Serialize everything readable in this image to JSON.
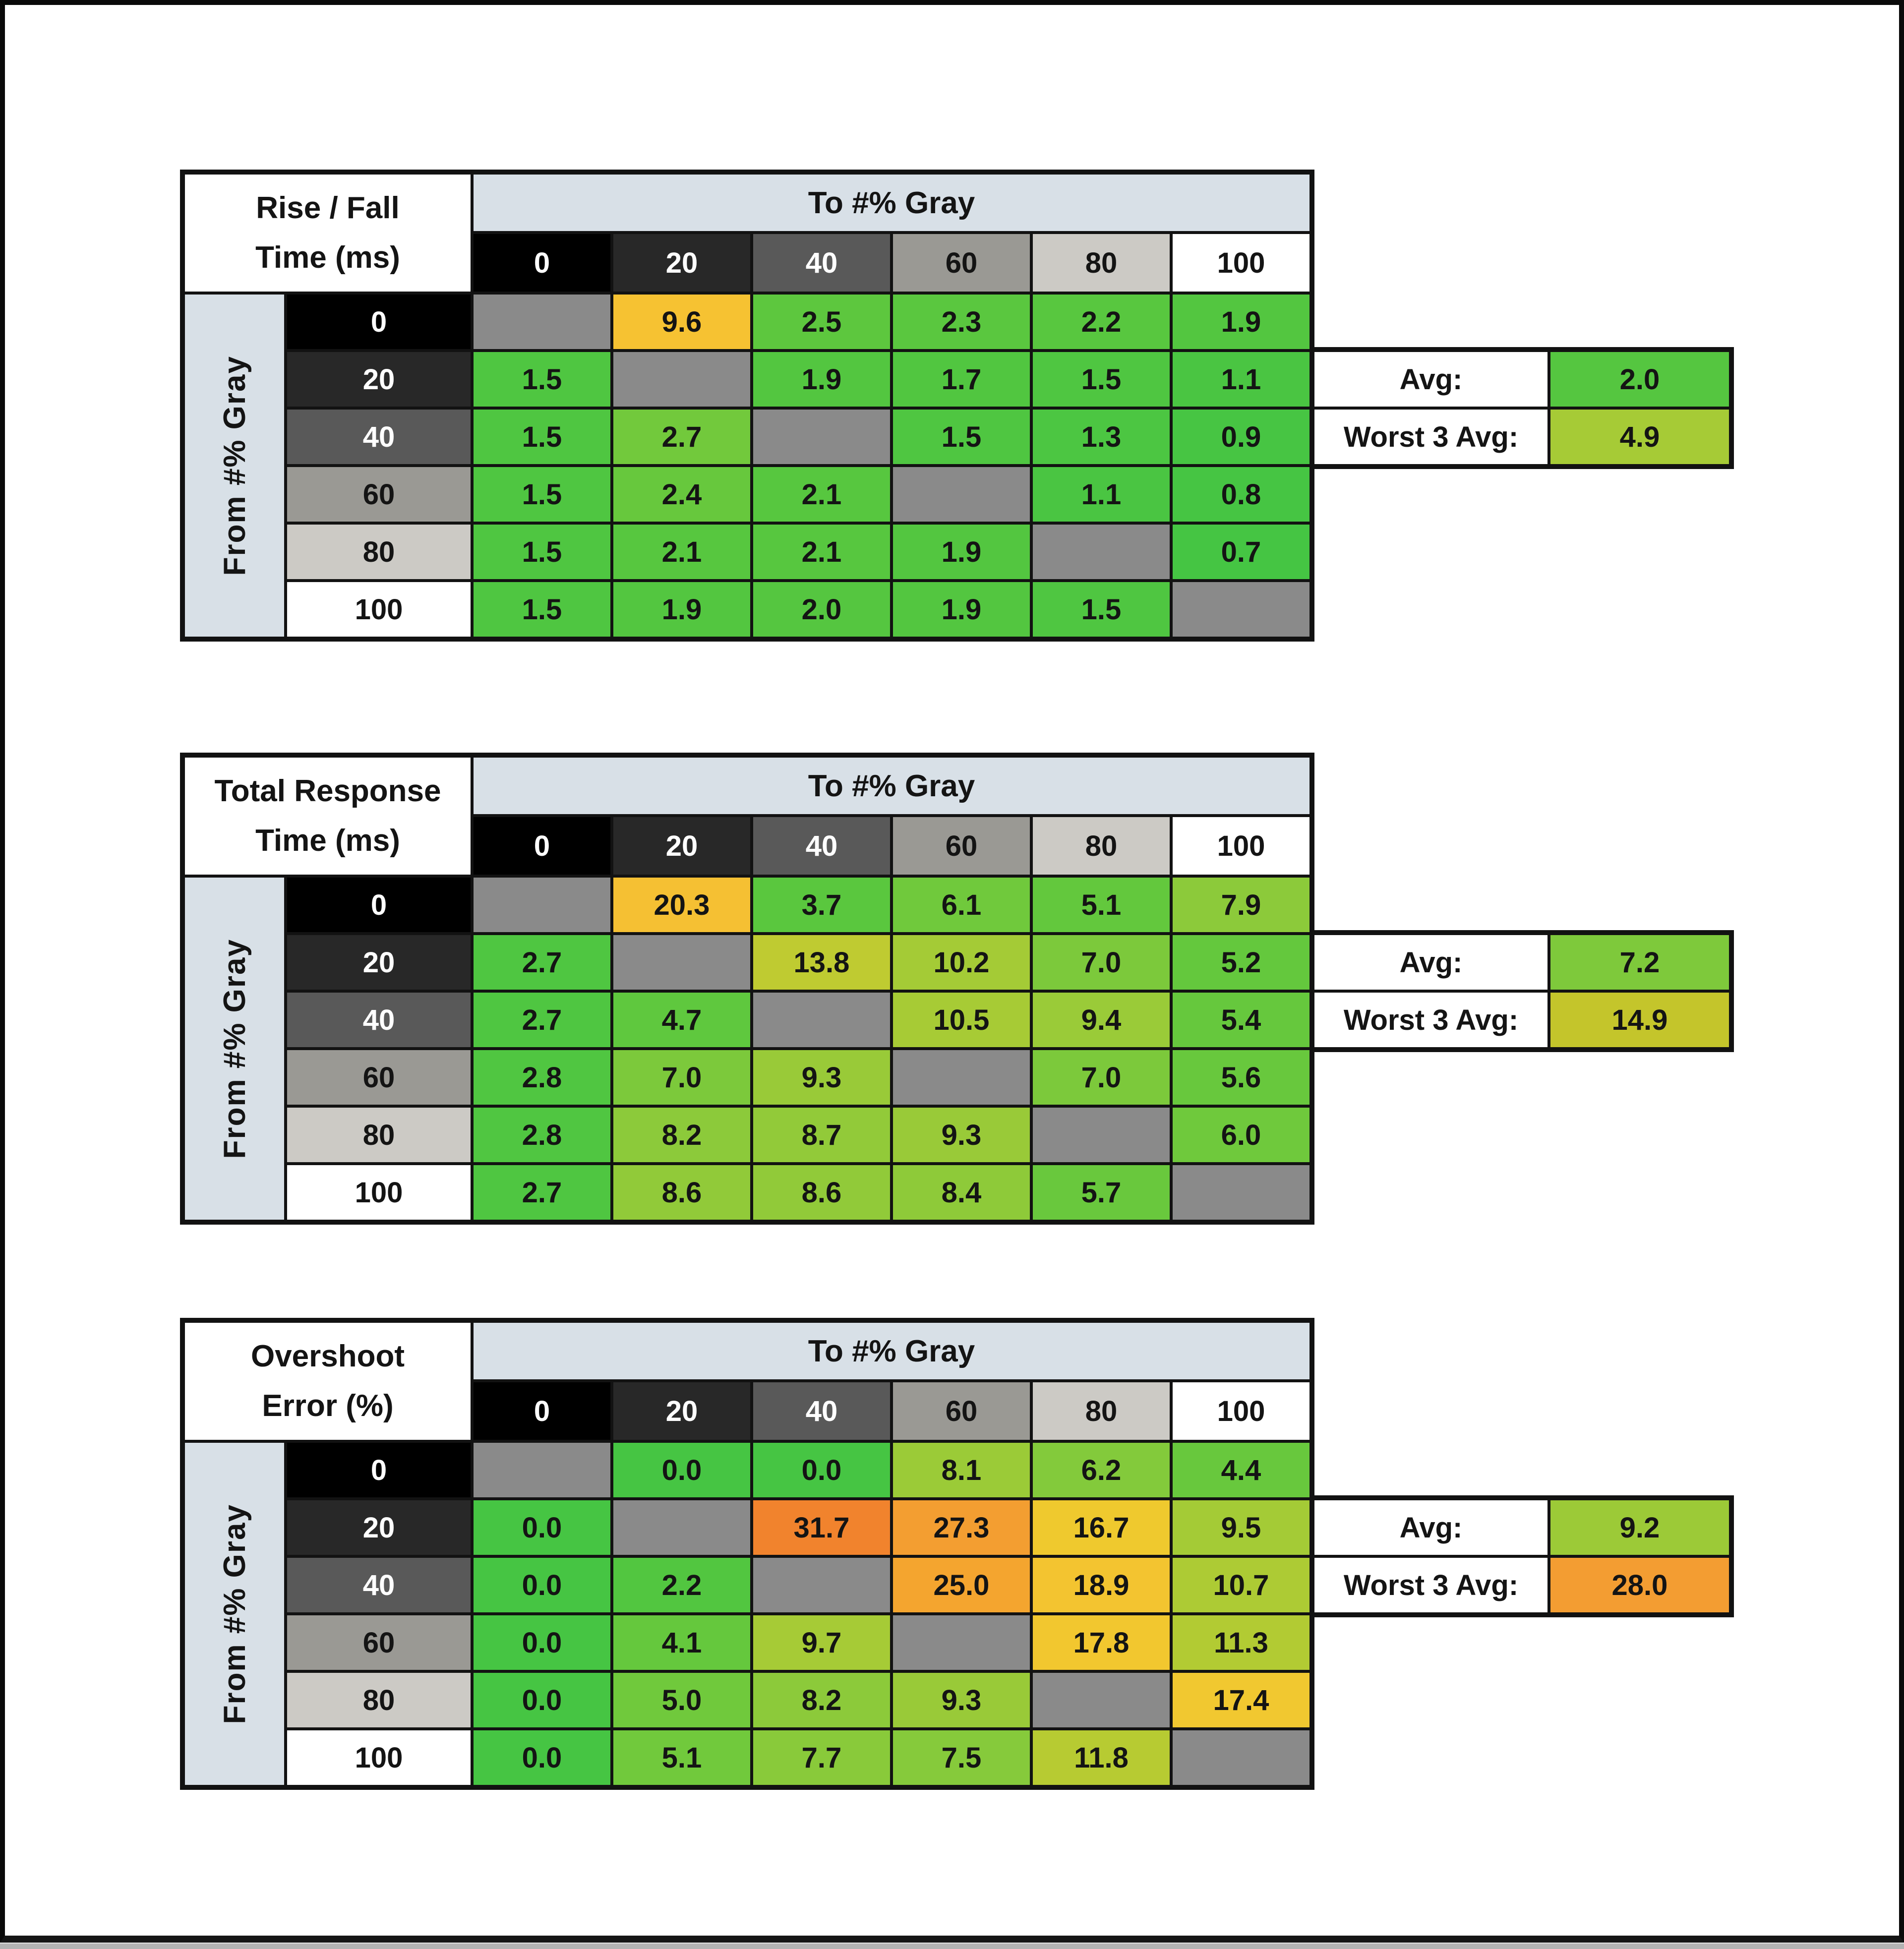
{
  "frame": {
    "background": "#ffffff",
    "border_color": "#0a0a0a",
    "bottom_strip_color": "#b3b3b3"
  },
  "shared": {
    "to_label": "To #% Gray",
    "from_label": "From #% Gray",
    "avg_label": "Avg:",
    "worst_label": "Worst 3 Avg:",
    "band_color": "#d8e0e7",
    "diagonal_color": "#8a8a8a",
    "col_headers": [
      {
        "label": "0",
        "bg": "#000000",
        "fg": "#ffffff"
      },
      {
        "label": "20",
        "bg": "#282828",
        "fg": "#ffffff"
      },
      {
        "label": "40",
        "bg": "#595959",
        "fg": "#ffffff"
      },
      {
        "label": "60",
        "bg": "#9a9994",
        "fg": "#141414"
      },
      {
        "label": "80",
        "bg": "#cccac5",
        "fg": "#141414"
      },
      {
        "label": "100",
        "bg": "#ffffff",
        "fg": "#141414"
      }
    ]
  },
  "tables": [
    {
      "title_line1": "Rise / Fall",
      "title_line2": "Time (ms)",
      "avg": {
        "value": "2.0",
        "color": "#55c640"
      },
      "worst3": {
        "value": "4.9",
        "color": "#a6cb36"
      },
      "rows": [
        {
          "cells": [
            null,
            {
              "v": "9.6",
              "c": "#f6c232"
            },
            {
              "v": "2.5",
              "c": "#5dc73e"
            },
            {
              "v": "2.3",
              "c": "#5ac73f"
            },
            {
              "v": "2.2",
              "c": "#58c73f"
            },
            {
              "v": "1.9",
              "c": "#53c640"
            }
          ]
        },
        {
          "cells": [
            {
              "v": "1.5",
              "c": "#4fc641"
            },
            null,
            {
              "v": "1.9",
              "c": "#53c640"
            },
            {
              "v": "1.7",
              "c": "#51c640"
            },
            {
              "v": "1.5",
              "c": "#4fc641"
            },
            {
              "v": "1.1",
              "c": "#4ac542"
            }
          ]
        },
        {
          "cells": [
            {
              "v": "1.5",
              "c": "#4fc641"
            },
            {
              "v": "2.7",
              "c": "#72c93c"
            },
            null,
            {
              "v": "1.5",
              "c": "#4fc641"
            },
            {
              "v": "1.3",
              "c": "#4cc642"
            },
            {
              "v": "0.9",
              "c": "#47c543"
            }
          ]
        },
        {
          "cells": [
            {
              "v": "1.5",
              "c": "#4fc641"
            },
            {
              "v": "2.4",
              "c": "#67c83d"
            },
            {
              "v": "2.1",
              "c": "#57c73f"
            },
            null,
            {
              "v": "1.1",
              "c": "#4ac542"
            },
            {
              "v": "0.8",
              "c": "#46c543"
            }
          ]
        },
        {
          "cells": [
            {
              "v": "1.5",
              "c": "#4fc641"
            },
            {
              "v": "2.1",
              "c": "#57c73f"
            },
            {
              "v": "2.1",
              "c": "#57c73f"
            },
            {
              "v": "1.9",
              "c": "#53c640"
            },
            null,
            {
              "v": "0.7",
              "c": "#45c543"
            }
          ]
        },
        {
          "cells": [
            {
              "v": "1.5",
              "c": "#4fc641"
            },
            {
              "v": "1.9",
              "c": "#53c640"
            },
            {
              "v": "2.0",
              "c": "#55c640"
            },
            {
              "v": "1.9",
              "c": "#53c640"
            },
            {
              "v": "1.5",
              "c": "#4fc641"
            },
            null
          ]
        }
      ]
    },
    {
      "title_line1": "Total Response",
      "title_line2": "Time (ms)",
      "avg": {
        "value": "7.2",
        "color": "#7ec93b"
      },
      "worst3": {
        "value": "14.9",
        "color": "#c4c52b"
      },
      "rows": [
        {
          "cells": [
            null,
            {
              "v": "20.3",
              "c": "#f5c033"
            },
            {
              "v": "3.7",
              "c": "#5ac73e"
            },
            {
              "v": "6.1",
              "c": "#70c93c"
            },
            {
              "v": "5.1",
              "c": "#63c83d"
            },
            {
              "v": "7.9",
              "c": "#8cca3a"
            }
          ]
        },
        {
          "cells": [
            {
              "v": "2.7",
              "c": "#4fc641"
            },
            null,
            {
              "v": "13.8",
              "c": "#bfcb31"
            },
            {
              "v": "10.2",
              "c": "#a4cb36"
            },
            {
              "v": "7.0",
              "c": "#7cc93b"
            },
            {
              "v": "5.2",
              "c": "#64c83d"
            }
          ]
        },
        {
          "cells": [
            {
              "v": "2.7",
              "c": "#4fc641"
            },
            {
              "v": "4.7",
              "c": "#5fc83e"
            },
            null,
            {
              "v": "10.5",
              "c": "#a7cb35"
            },
            {
              "v": "9.4",
              "c": "#9acb38"
            },
            {
              "v": "5.4",
              "c": "#66c83d"
            }
          ]
        },
        {
          "cells": [
            {
              "v": "2.8",
              "c": "#50c641"
            },
            {
              "v": "7.0",
              "c": "#7cc93b"
            },
            {
              "v": "9.3",
              "c": "#99ca38"
            },
            null,
            {
              "v": "7.0",
              "c": "#7cc93b"
            },
            {
              "v": "5.6",
              "c": "#68c83d"
            }
          ]
        },
        {
          "cells": [
            {
              "v": "2.8",
              "c": "#50c641"
            },
            {
              "v": "8.2",
              "c": "#8cca3a"
            },
            {
              "v": "8.7",
              "c": "#92ca39"
            },
            {
              "v": "9.3",
              "c": "#99ca38"
            },
            null,
            {
              "v": "6.0",
              "c": "#6fc93c"
            }
          ]
        },
        {
          "cells": [
            {
              "v": "2.7",
              "c": "#4fc641"
            },
            {
              "v": "8.6",
              "c": "#91ca39"
            },
            {
              "v": "8.6",
              "c": "#91ca39"
            },
            {
              "v": "8.4",
              "c": "#8eca39"
            },
            {
              "v": "5.7",
              "c": "#69c83d"
            },
            null
          ]
        }
      ]
    },
    {
      "title_line1": "Overshoot",
      "title_line2": "Error (%)",
      "avg": {
        "value": "9.2",
        "color": "#9cca37"
      },
      "worst3": {
        "value": "28.0",
        "color": "#f39d32"
      },
      "rows": [
        {
          "cells": [
            null,
            {
              "v": "0.0",
              "c": "#46c543"
            },
            {
              "v": "0.0",
              "c": "#46c543"
            },
            {
              "v": "8.1",
              "c": "#9bcb37"
            },
            {
              "v": "6.2",
              "c": "#83ca3b"
            },
            {
              "v": "4.4",
              "c": "#68c83d"
            }
          ]
        },
        {
          "cells": [
            {
              "v": "0.0",
              "c": "#46c543"
            },
            null,
            {
              "v": "31.7",
              "c": "#f1832d"
            },
            {
              "v": "27.3",
              "c": "#f39e31"
            },
            {
              "v": "16.7",
              "c": "#efc92e"
            },
            {
              "v": "9.5",
              "c": "#a4cb36"
            }
          ]
        },
        {
          "cells": [
            {
              "v": "0.0",
              "c": "#46c543"
            },
            {
              "v": "2.2",
              "c": "#52c640"
            },
            null,
            {
              "v": "25.0",
              "c": "#f4a52f"
            },
            {
              "v": "18.9",
              "c": "#f3c430"
            },
            {
              "v": "10.7",
              "c": "#adcb34"
            }
          ]
        },
        {
          "cells": [
            {
              "v": "0.0",
              "c": "#46c543"
            },
            {
              "v": "4.1",
              "c": "#65c83d"
            },
            {
              "v": "9.7",
              "c": "#a6cb36"
            },
            null,
            {
              "v": "17.8",
              "c": "#f2c72f"
            },
            {
              "v": "11.3",
              "c": "#b2cb33"
            }
          ]
        },
        {
          "cells": [
            {
              "v": "0.0",
              "c": "#46c543"
            },
            {
              "v": "5.0",
              "c": "#70c93c"
            },
            {
              "v": "8.2",
              "c": "#8cca3a"
            },
            {
              "v": "9.3",
              "c": "#99ca38"
            },
            null,
            {
              "v": "17.4",
              "c": "#f1c830"
            }
          ]
        },
        {
          "cells": [
            {
              "v": "0.0",
              "c": "#46c543"
            },
            {
              "v": "5.1",
              "c": "#71c93c"
            },
            {
              "v": "7.7",
              "c": "#89ca3a"
            },
            {
              "v": "7.5",
              "c": "#86ca3b"
            },
            {
              "v": "11.8",
              "c": "#b7cb32"
            },
            null
          ]
        }
      ]
    }
  ],
  "chart_data": [
    {
      "type": "heatmap",
      "title": "Rise / Fall Time (ms)",
      "xlabel": "To #% Gray",
      "ylabel": "From #% Gray",
      "x_ticks": [
        0,
        20,
        40,
        60,
        80,
        100
      ],
      "y_ticks": [
        0,
        20,
        40,
        60,
        80,
        100
      ],
      "values": [
        [
          null,
          9.6,
          2.5,
          2.3,
          2.2,
          1.9
        ],
        [
          1.5,
          null,
          1.9,
          1.7,
          1.5,
          1.1
        ],
        [
          1.5,
          2.7,
          null,
          1.5,
          1.3,
          0.9
        ],
        [
          1.5,
          2.4,
          2.1,
          null,
          1.1,
          0.8
        ],
        [
          1.5,
          2.1,
          2.1,
          1.9,
          null,
          0.7
        ],
        [
          1.5,
          1.9,
          2.0,
          1.9,
          1.5,
          null
        ]
      ],
      "avg": 2.0,
      "worst_3_avg": 4.9
    },
    {
      "type": "heatmap",
      "title": "Total Response Time (ms)",
      "xlabel": "To #% Gray",
      "ylabel": "From #% Gray",
      "x_ticks": [
        0,
        20,
        40,
        60,
        80,
        100
      ],
      "y_ticks": [
        0,
        20,
        40,
        60,
        80,
        100
      ],
      "values": [
        [
          null,
          20.3,
          3.7,
          6.1,
          5.1,
          7.9
        ],
        [
          2.7,
          null,
          13.8,
          10.2,
          7.0,
          5.2
        ],
        [
          2.7,
          4.7,
          null,
          10.5,
          9.4,
          5.4
        ],
        [
          2.8,
          7.0,
          9.3,
          null,
          7.0,
          5.6
        ],
        [
          2.8,
          8.2,
          8.7,
          9.3,
          null,
          6.0
        ],
        [
          2.7,
          8.6,
          8.6,
          8.4,
          5.7,
          null
        ]
      ],
      "avg": 7.2,
      "worst_3_avg": 14.9
    },
    {
      "type": "heatmap",
      "title": "Overshoot Error (%)",
      "xlabel": "To #% Gray",
      "ylabel": "From #% Gray",
      "x_ticks": [
        0,
        20,
        40,
        60,
        80,
        100
      ],
      "y_ticks": [
        0,
        20,
        40,
        60,
        80,
        100
      ],
      "values": [
        [
          null,
          0.0,
          0.0,
          8.1,
          6.2,
          4.4
        ],
        [
          0.0,
          null,
          31.7,
          27.3,
          16.7,
          9.5
        ],
        [
          0.0,
          2.2,
          null,
          25.0,
          18.9,
          10.7
        ],
        [
          0.0,
          4.1,
          9.7,
          null,
          17.8,
          11.3
        ],
        [
          0.0,
          5.0,
          8.2,
          9.3,
          null,
          17.4
        ],
        [
          0.0,
          5.1,
          7.7,
          7.5,
          11.8,
          null
        ]
      ],
      "avg": 9.2,
      "worst_3_avg": 28.0
    }
  ]
}
